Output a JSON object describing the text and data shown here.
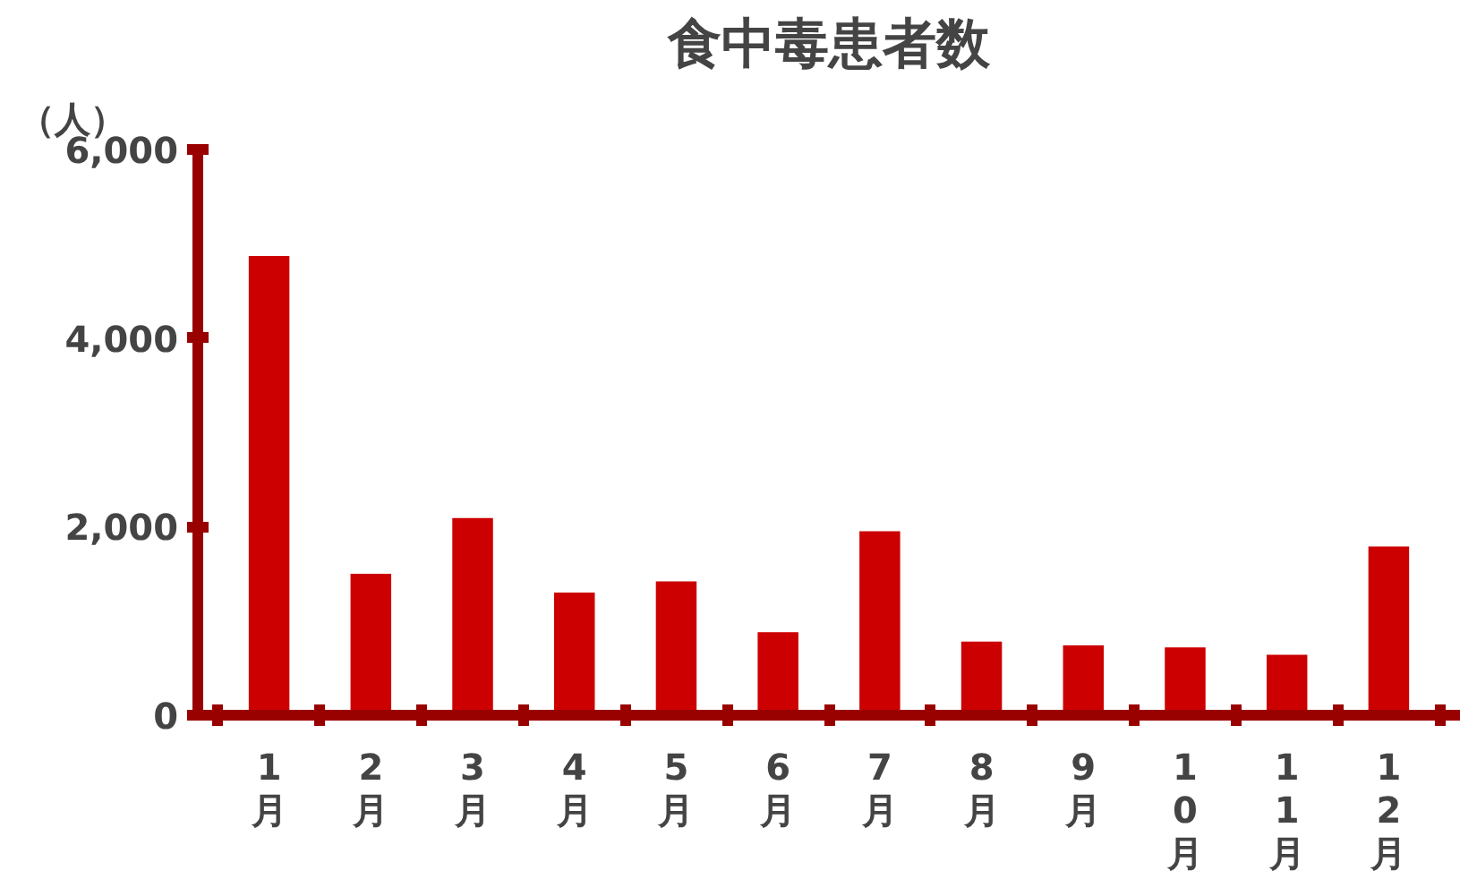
{
  "chart_data": {
    "type": "bar",
    "title": "食中毒患者数",
    "ylabel": "（人）",
    "categories": [
      "1月",
      "2月",
      "3月",
      "4月",
      "5月",
      "6月",
      "7月",
      "8月",
      "9月",
      "10月",
      "11月",
      "12月"
    ],
    "values": [
      4870,
      1500,
      2090,
      1300,
      1420,
      880,
      1950,
      780,
      740,
      720,
      640,
      1790
    ],
    "color": "#cc0000",
    "ylim": [
      0,
      6000
    ],
    "yticks": [
      0,
      {
        "value": 2000,
        "label": "2,000"
      },
      {
        "value": 4000,
        "label": "4,000"
      },
      {
        "value": 6000,
        "label": "6,000"
      }
    ],
    "grid": false
  }
}
